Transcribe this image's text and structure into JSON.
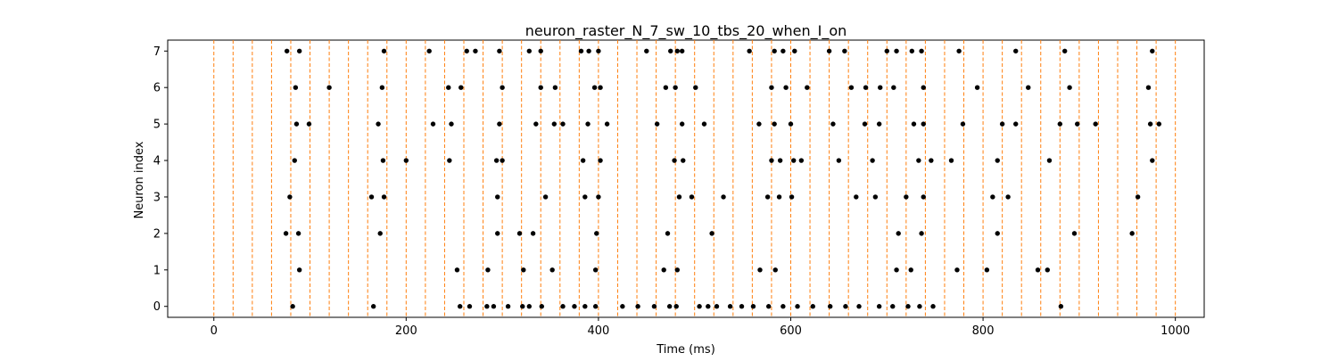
{
  "chart_data": {
    "type": "scatter",
    "title": "neuron_raster_N_7_sw_10_tbs_20_when_I_on",
    "xlabel": "Time (ms)",
    "ylabel": "Neuron index",
    "xlim": [
      -48,
      1030
    ],
    "ylim": [
      -0.3,
      7.3
    ],
    "xticks": [
      0,
      200,
      400,
      600,
      800,
      1000
    ],
    "yticks": [
      0,
      1,
      2,
      3,
      4,
      5,
      6,
      7
    ],
    "grid": false,
    "vlines": {
      "style": "dashed",
      "color": "#ff7f0e",
      "x": [
        0,
        20,
        40,
        60,
        80,
        100,
        120,
        140,
        160,
        180,
        200,
        220,
        240,
        260,
        280,
        300,
        320,
        340,
        360,
        380,
        400,
        420,
        440,
        460,
        480,
        500,
        520,
        540,
        560,
        580,
        600,
        620,
        640,
        660,
        680,
        700,
        720,
        740,
        760,
        780,
        800,
        820,
        840,
        860,
        880,
        900,
        920,
        940,
        960,
        980,
        1000
      ]
    },
    "marker_color": "#000000",
    "spikes": [
      {
        "neuron": 0,
        "times": [
          82,
          166,
          256,
          266,
          284,
          291,
          306,
          321,
          328,
          341,
          363,
          375,
          386,
          397,
          425,
          441,
          458,
          474,
          481,
          505,
          514,
          523,
          537,
          549,
          561,
          577,
          592,
          607,
          623,
          641,
          657,
          671,
          692,
          706,
          722,
          734,
          748,
          881
        ]
      },
      {
        "neuron": 1,
        "times": [
          89,
          253,
          285,
          322,
          352,
          397,
          468,
          482,
          568,
          584,
          710,
          725,
          773,
          804,
          857,
          867
        ]
      },
      {
        "neuron": 2,
        "times": [
          75,
          88,
          173,
          295,
          318,
          332,
          398,
          472,
          518,
          712,
          736,
          815,
          895,
          955
        ]
      },
      {
        "neuron": 3,
        "times": [
          79,
          164,
          177,
          295,
          345,
          386,
          400,
          484,
          497,
          530,
          576,
          588,
          601,
          668,
          688,
          720,
          738,
          810,
          826,
          961
        ]
      },
      {
        "neuron": 4,
        "times": [
          84,
          176,
          200,
          245,
          294,
          300,
          384,
          402,
          479,
          488,
          580,
          589,
          603,
          611,
          650,
          685,
          733,
          746,
          767,
          815,
          869,
          976
        ]
      },
      {
        "neuron": 5,
        "times": [
          86,
          99,
          171,
          228,
          247,
          297,
          335,
          354,
          363,
          389,
          409,
          461,
          487,
          510,
          567,
          583,
          600,
          644,
          677,
          692,
          728,
          738,
          779,
          820,
          834,
          880,
          898,
          917,
          974,
          983
        ]
      },
      {
        "neuron": 6,
        "times": [
          85,
          120,
          175,
          244,
          257,
          300,
          340,
          355,
          396,
          402,
          470,
          480,
          501,
          580,
          595,
          617,
          663,
          678,
          693,
          707,
          738,
          794,
          847,
          890,
          972
        ]
      },
      {
        "neuron": 7,
        "times": [
          76,
          89,
          177,
          224,
          263,
          272,
          297,
          328,
          340,
          382,
          390,
          400,
          450,
          475,
          482,
          487,
          557,
          583,
          592,
          604,
          640,
          656,
          700,
          710,
          726,
          736,
          775,
          834,
          885,
          976
        ]
      }
    ]
  }
}
